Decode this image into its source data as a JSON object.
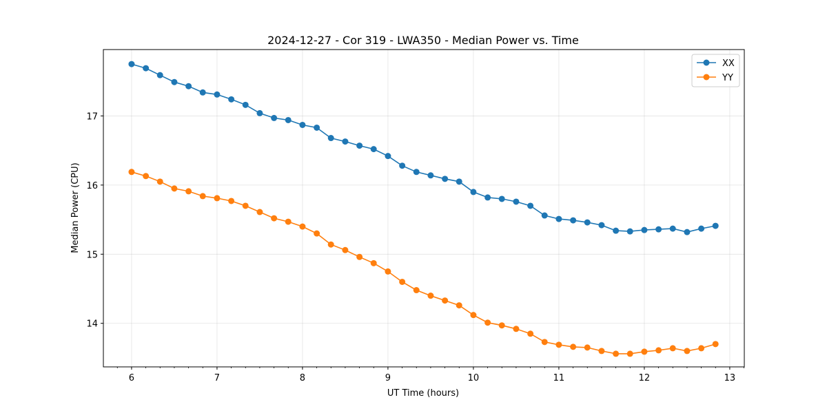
{
  "chart_data": {
    "type": "line",
    "title": "2024-12-27 - Cor 319 - LWA350 - Median Power vs. Time",
    "xlabel": "UT Time (hours)",
    "ylabel": "Median Power (CPU)",
    "xlim": [
      5.67,
      13.17
    ],
    "ylim": [
      13.37,
      17.96
    ],
    "xticks": [
      6,
      7,
      8,
      9,
      10,
      11,
      12,
      13
    ],
    "xtick_labels": [
      "6",
      "7",
      "8",
      "9",
      "10",
      "11",
      "12",
      "13"
    ],
    "yticks": [
      14,
      15,
      16,
      17
    ],
    "ytick_labels": [
      "14",
      "15",
      "16",
      "17"
    ],
    "grid": true,
    "legend_position": "top-right",
    "x": [
      6.0,
      6.167,
      6.333,
      6.5,
      6.667,
      6.833,
      7.0,
      7.167,
      7.333,
      7.5,
      7.667,
      7.833,
      8.0,
      8.167,
      8.333,
      8.5,
      8.667,
      8.833,
      9.0,
      9.167,
      9.333,
      9.5,
      9.667,
      9.833,
      10.0,
      10.167,
      10.333,
      10.5,
      10.667,
      10.833,
      11.0,
      11.167,
      11.333,
      11.5,
      11.667,
      11.833,
      12.0,
      12.167,
      12.333,
      12.5,
      12.667,
      12.833
    ],
    "series": [
      {
        "name": "XX",
        "color": "#1f77b4",
        "values": [
          17.75,
          17.69,
          17.59,
          17.49,
          17.43,
          17.34,
          17.31,
          17.24,
          17.16,
          17.04,
          16.97,
          16.94,
          16.87,
          16.83,
          16.68,
          16.63,
          16.57,
          16.52,
          16.42,
          16.28,
          16.19,
          16.14,
          16.09,
          16.05,
          15.9,
          15.82,
          15.8,
          15.76,
          15.7,
          15.56,
          15.51,
          15.49,
          15.46,
          15.42,
          15.34,
          15.33,
          15.35,
          15.36,
          15.37,
          15.32,
          15.37,
          15.41
        ]
      },
      {
        "name": "YY",
        "color": "#ff7f0e",
        "values": [
          16.19,
          16.13,
          16.05,
          15.95,
          15.91,
          15.84,
          15.81,
          15.77,
          15.7,
          15.61,
          15.52,
          15.47,
          15.4,
          15.3,
          15.14,
          15.06,
          14.96,
          14.87,
          14.75,
          14.6,
          14.48,
          14.4,
          14.33,
          14.26,
          14.12,
          14.01,
          13.97,
          13.92,
          13.85,
          13.73,
          13.69,
          13.66,
          13.65,
          13.6,
          13.56,
          13.56,
          13.59,
          13.61,
          13.64,
          13.6,
          13.64,
          13.7
        ]
      }
    ]
  }
}
